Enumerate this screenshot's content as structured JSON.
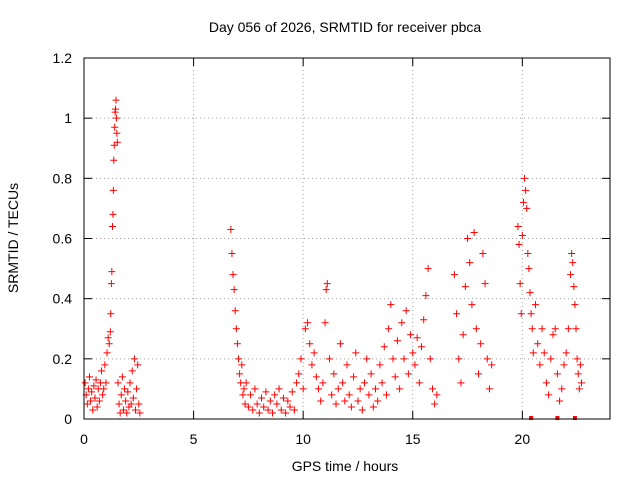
{
  "chart_data": {
    "type": "scatter",
    "title": "Day 056 of 2026, SRMTID for receiver pbca",
    "xlabel": "GPS time / hours",
    "ylabel": "SRMTID / TECUs",
    "xlim": [
      0,
      24
    ],
    "ylim": [
      0,
      1.2
    ],
    "x_ticks": [
      0,
      5,
      10,
      15,
      20
    ],
    "x_tick_labels": [
      "0",
      "5",
      "10",
      "15",
      "20"
    ],
    "y_ticks": [
      0,
      0.2,
      0.4,
      0.6,
      0.8,
      1.0,
      1.2
    ],
    "y_tick_labels": [
      "0",
      "0.2",
      "0.4",
      "0.6",
      "0.8",
      "1",
      "1.2"
    ],
    "grid": true,
    "marker": "+",
    "series": [
      {
        "name": "SRMTID",
        "color": "#ff0000",
        "points": [
          [
            0.05,
            0.12
          ],
          [
            0.1,
            0.08
          ],
          [
            0.15,
            0.05
          ],
          [
            0.2,
            0.1
          ],
          [
            0.25,
            0.14
          ],
          [
            0.3,
            0.06
          ],
          [
            0.35,
            0.09
          ],
          [
            0.4,
            0.03
          ],
          [
            0.45,
            0.11
          ],
          [
            0.5,
            0.07
          ],
          [
            0.55,
            0.13
          ],
          [
            0.6,
            0.04
          ],
          [
            0.65,
            0.1
          ],
          [
            0.7,
            0.06
          ],
          [
            0.75,
            0.12
          ],
          [
            0.8,
            0.16
          ],
          [
            0.85,
            0.08
          ],
          [
            0.9,
            0.1
          ],
          [
            0.95,
            0.18
          ],
          [
            1.0,
            0.12
          ],
          [
            1.05,
            0.22
          ],
          [
            1.1,
            0.27
          ],
          [
            1.15,
            0.25
          ],
          [
            1.2,
            0.29
          ],
          [
            1.22,
            0.35
          ],
          [
            1.25,
            0.45
          ],
          [
            1.27,
            0.49
          ],
          [
            1.3,
            0.64
          ],
          [
            1.32,
            0.68
          ],
          [
            1.34,
            0.76
          ],
          [
            1.36,
            0.86
          ],
          [
            1.38,
            0.91
          ],
          [
            1.4,
            0.97
          ],
          [
            1.42,
            1.02
          ],
          [
            1.44,
            1.03
          ],
          [
            1.46,
            1.06
          ],
          [
            1.48,
            1.0
          ],
          [
            1.5,
            0.95
          ],
          [
            1.52,
            0.92
          ],
          [
            1.55,
            0.12
          ],
          [
            1.6,
            0.05
          ],
          [
            1.65,
            0.02
          ],
          [
            1.7,
            0.08
          ],
          [
            1.75,
            0.14
          ],
          [
            1.8,
            0.03
          ],
          [
            1.85,
            0.1
          ],
          [
            1.9,
            0.06
          ],
          [
            1.95,
            0.02
          ],
          [
            2.0,
            0.09
          ],
          [
            2.05,
            0.04
          ],
          [
            2.1,
            0.12
          ],
          [
            2.15,
            0.05
          ],
          [
            2.2,
            0.16
          ],
          [
            2.25,
            0.07
          ],
          [
            2.3,
            0.2
          ],
          [
            2.35,
            0.03
          ],
          [
            2.4,
            0.1
          ],
          [
            2.45,
            0.18
          ],
          [
            2.5,
            0.05
          ],
          [
            2.55,
            0.02
          ],
          [
            6.7,
            0.63
          ],
          [
            6.75,
            0.55
          ],
          [
            6.8,
            0.48
          ],
          [
            6.85,
            0.43
          ],
          [
            6.9,
            0.36
          ],
          [
            6.95,
            0.3
          ],
          [
            7.0,
            0.25
          ],
          [
            7.05,
            0.2
          ],
          [
            7.1,
            0.15
          ],
          [
            7.15,
            0.12
          ],
          [
            7.2,
            0.18
          ],
          [
            7.25,
            0.08
          ],
          [
            7.3,
            0.1
          ],
          [
            7.35,
            0.05
          ],
          [
            7.4,
            0.12
          ],
          [
            7.5,
            0.04
          ],
          [
            7.6,
            0.08
          ],
          [
            7.7,
            0.03
          ],
          [
            7.8,
            0.1
          ],
          [
            7.9,
            0.05
          ],
          [
            8.0,
            0.02
          ],
          [
            8.1,
            0.07
          ],
          [
            8.2,
            0.04
          ],
          [
            8.3,
            0.09
          ],
          [
            8.4,
            0.03
          ],
          [
            8.5,
            0.06
          ],
          [
            8.6,
            0.02
          ],
          [
            8.7,
            0.08
          ],
          [
            8.8,
            0.05
          ],
          [
            8.9,
            0.1
          ],
          [
            9.0,
            0.03
          ],
          [
            9.1,
            0.07
          ],
          [
            9.2,
            0.02
          ],
          [
            9.3,
            0.06
          ],
          [
            9.4,
            0.04
          ],
          [
            9.5,
            0.09
          ],
          [
            9.6,
            0.03
          ],
          [
            9.7,
            0.12
          ],
          [
            9.8,
            0.15
          ],
          [
            9.9,
            0.2
          ],
          [
            10.0,
            0.1
          ],
          [
            10.1,
            0.3
          ],
          [
            10.2,
            0.32
          ],
          [
            10.3,
            0.25
          ],
          [
            10.4,
            0.18
          ],
          [
            10.5,
            0.22
          ],
          [
            10.6,
            0.14
          ],
          [
            10.7,
            0.1
          ],
          [
            10.8,
            0.06
          ],
          [
            10.9,
            0.12
          ],
          [
            11.0,
            0.32
          ],
          [
            11.05,
            0.43
          ],
          [
            11.1,
            0.45
          ],
          [
            11.2,
            0.2
          ],
          [
            11.3,
            0.08
          ],
          [
            11.4,
            0.15
          ],
          [
            11.5,
            0.05
          ],
          [
            11.6,
            0.1
          ],
          [
            11.7,
            0.25
          ],
          [
            11.8,
            0.12
          ],
          [
            11.9,
            0.06
          ],
          [
            12.0,
            0.18
          ],
          [
            12.1,
            0.08
          ],
          [
            12.2,
            0.04
          ],
          [
            12.3,
            0.14
          ],
          [
            12.4,
            0.22
          ],
          [
            12.5,
            0.06
          ],
          [
            12.6,
            0.1
          ],
          [
            12.7,
            0.03
          ],
          [
            12.8,
            0.12
          ],
          [
            12.9,
            0.2
          ],
          [
            13.0,
            0.08
          ],
          [
            13.1,
            0.15
          ],
          [
            13.2,
            0.04
          ],
          [
            13.3,
            0.1
          ],
          [
            13.4,
            0.06
          ],
          [
            13.5,
            0.18
          ],
          [
            13.6,
            0.12
          ],
          [
            13.7,
            0.24
          ],
          [
            13.8,
            0.08
          ],
          [
            13.9,
            0.3
          ],
          [
            14.0,
            0.38
          ],
          [
            14.1,
            0.2
          ],
          [
            14.2,
            0.14
          ],
          [
            14.3,
            0.26
          ],
          [
            14.4,
            0.1
          ],
          [
            14.5,
            0.32
          ],
          [
            14.6,
            0.2
          ],
          [
            14.7,
            0.36
          ],
          [
            14.8,
            0.15
          ],
          [
            14.9,
            0.28
          ],
          [
            15.0,
            0.22
          ],
          [
            15.1,
            0.18
          ],
          [
            15.2,
            0.27
          ],
          [
            15.3,
            0.12
          ],
          [
            15.4,
            0.24
          ],
          [
            15.5,
            0.33
          ],
          [
            15.6,
            0.41
          ],
          [
            15.7,
            0.5
          ],
          [
            15.8,
            0.2
          ],
          [
            15.9,
            0.1
          ],
          [
            16.0,
            0.05
          ],
          [
            16.1,
            0.08
          ],
          [
            16.9,
            0.48
          ],
          [
            17.0,
            0.35
          ],
          [
            17.1,
            0.2
          ],
          [
            17.2,
            0.12
          ],
          [
            17.3,
            0.28
          ],
          [
            17.4,
            0.44
          ],
          [
            17.5,
            0.6
          ],
          [
            17.6,
            0.52
          ],
          [
            17.7,
            0.38
          ],
          [
            17.8,
            0.62
          ],
          [
            17.9,
            0.3
          ],
          [
            18.0,
            0.15
          ],
          [
            18.1,
            0.25
          ],
          [
            18.2,
            0.55
          ],
          [
            18.3,
            0.45
          ],
          [
            18.4,
            0.2
          ],
          [
            18.5,
            0.1
          ],
          [
            18.6,
            0.18
          ],
          [
            19.8,
            0.64
          ],
          [
            19.85,
            0.58
          ],
          [
            19.9,
            0.45
          ],
          [
            19.95,
            0.35
          ],
          [
            20.0,
            0.61
          ],
          [
            20.05,
            0.72
          ],
          [
            20.1,
            0.8
          ],
          [
            20.15,
            0.76
          ],
          [
            20.2,
            0.7
          ],
          [
            20.25,
            0.55
          ],
          [
            20.3,
            0.5
          ],
          [
            20.35,
            0.42
          ],
          [
            20.4,
            0.35
          ],
          [
            20.45,
            0.3
          ],
          [
            20.5,
            0.22
          ],
          [
            20.6,
            0.38
          ],
          [
            20.7,
            0.25
          ],
          [
            20.8,
            0.18
          ],
          [
            20.9,
            0.3
          ],
          [
            21.0,
            0.22
          ],
          [
            21.1,
            0.12
          ],
          [
            21.2,
            0.08
          ],
          [
            21.3,
            0.2
          ],
          [
            21.4,
            0.28
          ],
          [
            21.5,
            0.3
          ],
          [
            21.6,
            0.15
          ],
          [
            21.7,
            0.06
          ],
          [
            21.8,
            0.1
          ],
          [
            21.9,
            0.18
          ],
          [
            22.0,
            0.22
          ],
          [
            22.1,
            0.3
          ],
          [
            22.2,
            0.48
          ],
          [
            22.25,
            0.55
          ],
          [
            22.3,
            0.52
          ],
          [
            22.35,
            0.44
          ],
          [
            22.4,
            0.38
          ],
          [
            22.45,
            0.3
          ],
          [
            22.5,
            0.2
          ],
          [
            22.55,
            0.15
          ],
          [
            22.6,
            0.1
          ],
          [
            22.65,
            0.18
          ],
          [
            22.7,
            0.12
          ]
        ]
      }
    ],
    "baseline_markers": [
      [
        20.4,
        0
      ],
      [
        21.6,
        0
      ],
      [
        22.4,
        0
      ]
    ]
  }
}
